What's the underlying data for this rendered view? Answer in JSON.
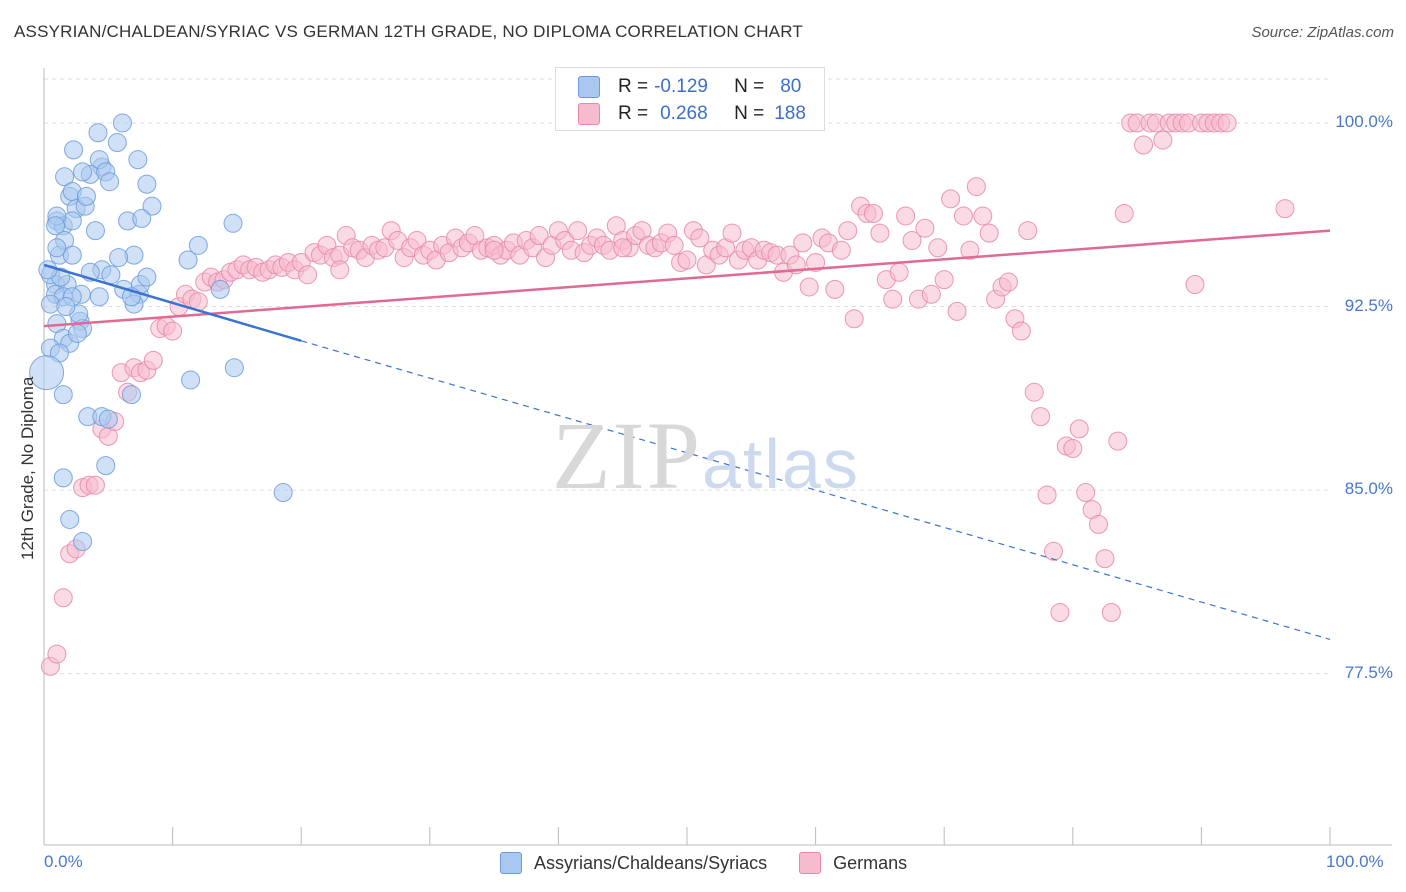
{
  "title": "ASSYRIAN/CHALDEAN/SYRIAC VS GERMAN 12TH GRADE, NO DIPLOMA CORRELATION CHART",
  "source": "Source: ZipAtlas.com",
  "watermark": {
    "zip": "ZIP",
    "atlas": "atlas"
  },
  "colors": {
    "blue_fill": "#a9c8f0",
    "blue_stroke": "#6b9bd8",
    "blue_line": "#3a74d0",
    "pink_fill": "#f6bccd",
    "pink_stroke": "#e887a6",
    "pink_line": "#e06996",
    "tick_text": "#4a78c8",
    "grid": "#dddddd"
  },
  "legend_top": {
    "rows": [
      {
        "r_label": "R =",
        "r_value": "-0.129",
        "n_label": "N =",
        "n_value": "80",
        "color": "#a9c8f0"
      },
      {
        "r_label": "R =",
        "r_value": "0.268",
        "n_label": "N =",
        "n_value": "188",
        "color": "#f6bccd"
      }
    ]
  },
  "legend_bottom": [
    {
      "label": "Assyrians/Chaldeans/Syriacs",
      "color": "#a9c8f0"
    },
    {
      "label": "Germans",
      "color": "#f6bccd"
    }
  ],
  "chart_data": {
    "type": "scatter",
    "title": "ASSYRIAN/CHALDEAN/SYRIAC VS GERMAN 12TH GRADE, NO DIPLOMA CORRELATION CHART",
    "xlabel": "",
    "ylabel": "12th Grade, No Diploma",
    "xlim": [
      0,
      100
    ],
    "ylim": [
      70.5,
      102
    ],
    "x_ticks": [
      "0.0%",
      "100.0%"
    ],
    "y_ticks": [
      {
        "value": 100.0,
        "label": "100.0%"
      },
      {
        "value": 92.5,
        "label": "92.5%"
      },
      {
        "value": 85.0,
        "label": "85.0%"
      },
      {
        "value": 77.5,
        "label": "77.5%"
      }
    ],
    "grid": true,
    "legend": "bottom",
    "series": [
      {
        "name": "Assyrians/Chaldeans/Syriacs",
        "color": "#a9c8f0",
        "trend": {
          "x": [
            0,
            20
          ],
          "y": [
            94.2,
            91.1
          ],
          "dashed_to": [
            100,
            78.9
          ]
        },
        "points": [
          [
            2.0,
            97.0
          ],
          [
            4.5,
            98.2
          ],
          [
            4.2,
            99.6
          ],
          [
            5.7,
            99.2
          ],
          [
            7.3,
            98.5
          ],
          [
            4.3,
            98.5
          ],
          [
            3.6,
            97.9
          ],
          [
            4.8,
            98.0
          ],
          [
            1.6,
            97.8
          ],
          [
            3.0,
            98.0
          ],
          [
            2.2,
            97.2
          ],
          [
            6.1,
            100.0
          ],
          [
            2.5,
            96.5
          ],
          [
            1.0,
            96.0
          ],
          [
            1.5,
            95.8
          ],
          [
            2.2,
            96.0
          ],
          [
            3.2,
            96.6
          ],
          [
            6.5,
            96.0
          ],
          [
            8.0,
            97.5
          ],
          [
            8.4,
            96.6
          ],
          [
            1.0,
            96.2
          ],
          [
            0.9,
            95.8
          ],
          [
            1.2,
            94.6
          ],
          [
            1.6,
            95.2
          ],
          [
            4.0,
            95.6
          ],
          [
            2.2,
            94.6
          ],
          [
            7.0,
            94.6
          ],
          [
            5.8,
            94.5
          ],
          [
            11.2,
            94.4
          ],
          [
            12.0,
            95.0
          ],
          [
            14.7,
            95.9
          ],
          [
            0.9,
            93.4
          ],
          [
            0.5,
            93.8
          ],
          [
            1.8,
            93.4
          ],
          [
            2.9,
            93.0
          ],
          [
            4.5,
            94.0
          ],
          [
            6.2,
            93.2
          ],
          [
            7.4,
            93.0
          ],
          [
            7.0,
            92.6
          ],
          [
            5.2,
            93.8
          ],
          [
            7.5,
            93.4
          ],
          [
            13.7,
            93.2
          ],
          [
            0.9,
            93.0
          ],
          [
            1.5,
            92.9
          ],
          [
            2.2,
            92.9
          ],
          [
            0.5,
            92.6
          ],
          [
            1.0,
            91.8
          ],
          [
            2.8,
            91.9
          ],
          [
            3.0,
            91.6
          ],
          [
            1.5,
            91.2
          ],
          [
            2.0,
            91.0
          ],
          [
            0.5,
            90.8
          ],
          [
            1.2,
            90.6
          ],
          [
            0.2,
            89.8
          ],
          [
            1.5,
            88.9
          ],
          [
            6.8,
            88.9
          ],
          [
            11.4,
            89.5
          ],
          [
            14.8,
            90.0
          ],
          [
            3.4,
            88.0
          ],
          [
            4.5,
            88.0
          ],
          [
            5.0,
            87.9
          ],
          [
            4.8,
            86.0
          ],
          [
            1.5,
            85.5
          ],
          [
            18.6,
            84.9
          ],
          [
            2.0,
            83.8
          ],
          [
            3.0,
            82.9
          ],
          [
            1.3,
            93.7
          ],
          [
            3.6,
            93.9
          ],
          [
            6.8,
            92.9
          ],
          [
            2.7,
            92.2
          ],
          [
            1.7,
            92.5
          ],
          [
            4.3,
            92.9
          ],
          [
            7.6,
            96.1
          ],
          [
            5.1,
            97.6
          ],
          [
            2.3,
            98.9
          ],
          [
            3.3,
            97.0
          ],
          [
            0.3,
            94.0
          ],
          [
            1.0,
            94.9
          ],
          [
            2.6,
            91.4
          ],
          [
            8.0,
            93.7
          ]
        ]
      },
      {
        "name": "Germans",
        "color": "#f6bccd",
        "trend": {
          "x": [
            0,
            100
          ],
          "y": [
            91.7,
            95.6
          ]
        },
        "points": [
          [
            0.5,
            77.8
          ],
          [
            1.0,
            78.3
          ],
          [
            1.5,
            80.6
          ],
          [
            2.0,
            82.4
          ],
          [
            2.5,
            82.6
          ],
          [
            3.0,
            85.1
          ],
          [
            3.5,
            85.2
          ],
          [
            4.0,
            85.2
          ],
          [
            4.5,
            87.5
          ],
          [
            5.0,
            87.2
          ],
          [
            5.5,
            87.8
          ],
          [
            6.0,
            89.8
          ],
          [
            6.5,
            89.0
          ],
          [
            7.0,
            90.0
          ],
          [
            7.5,
            89.8
          ],
          [
            8.0,
            89.9
          ],
          [
            8.5,
            90.3
          ],
          [
            9.0,
            91.6
          ],
          [
            9.5,
            91.7
          ],
          [
            10.0,
            91.5
          ],
          [
            10.5,
            92.5
          ],
          [
            11.0,
            93.0
          ],
          [
            11.5,
            92.8
          ],
          [
            12.0,
            92.7
          ],
          [
            12.5,
            93.5
          ],
          [
            13.0,
            93.7
          ],
          [
            13.5,
            93.5
          ],
          [
            14.0,
            93.6
          ],
          [
            14.5,
            93.9
          ],
          [
            15.0,
            94.0
          ],
          [
            15.5,
            94.2
          ],
          [
            16.0,
            94.0
          ],
          [
            16.5,
            94.1
          ],
          [
            17.0,
            93.9
          ],
          [
            17.5,
            94.0
          ],
          [
            18.0,
            94.2
          ],
          [
            18.5,
            94.1
          ],
          [
            19.0,
            94.3
          ],
          [
            19.5,
            94.0
          ],
          [
            20.0,
            94.3
          ],
          [
            20.5,
            93.8
          ],
          [
            21.0,
            94.7
          ],
          [
            21.5,
            94.6
          ],
          [
            22.0,
            95.0
          ],
          [
            22.5,
            94.5
          ],
          [
            23.0,
            94.6
          ],
          [
            23.5,
            95.4
          ],
          [
            24.0,
            94.9
          ],
          [
            24.5,
            94.8
          ],
          [
            25.0,
            94.5
          ],
          [
            25.5,
            95.0
          ],
          [
            26.0,
            94.8
          ],
          [
            26.5,
            94.9
          ],
          [
            27.0,
            95.6
          ],
          [
            27.5,
            95.2
          ],
          [
            28.0,
            94.5
          ],
          [
            28.5,
            94.9
          ],
          [
            29.0,
            95.2
          ],
          [
            29.5,
            94.6
          ],
          [
            30.0,
            94.8
          ],
          [
            30.5,
            94.4
          ],
          [
            31.0,
            95.0
          ],
          [
            31.5,
            94.7
          ],
          [
            32.0,
            95.3
          ],
          [
            32.5,
            94.9
          ],
          [
            33.0,
            95.1
          ],
          [
            33.5,
            95.4
          ],
          [
            34.0,
            94.8
          ],
          [
            34.5,
            94.9
          ],
          [
            35.0,
            95.0
          ],
          [
            35.5,
            94.6
          ],
          [
            36.0,
            94.8
          ],
          [
            36.5,
            95.1
          ],
          [
            37.0,
            94.6
          ],
          [
            37.5,
            95.2
          ],
          [
            38.0,
            94.9
          ],
          [
            38.5,
            95.4
          ],
          [
            39.0,
            94.5
          ],
          [
            39.5,
            95.0
          ],
          [
            40.0,
            95.6
          ],
          [
            40.5,
            95.2
          ],
          [
            41.0,
            94.8
          ],
          [
            41.5,
            95.6
          ],
          [
            42.0,
            94.7
          ],
          [
            42.5,
            95.0
          ],
          [
            43.0,
            95.3
          ],
          [
            43.5,
            95.0
          ],
          [
            44.0,
            94.8
          ],
          [
            44.5,
            95.8
          ],
          [
            45.0,
            95.2
          ],
          [
            45.5,
            94.9
          ],
          [
            46.0,
            95.4
          ],
          [
            46.5,
            95.6
          ],
          [
            47.0,
            95.0
          ],
          [
            47.5,
            94.9
          ],
          [
            48.0,
            95.1
          ],
          [
            48.5,
            95.5
          ],
          [
            49.0,
            95.0
          ],
          [
            49.5,
            94.3
          ],
          [
            50.0,
            94.4
          ],
          [
            50.5,
            95.6
          ],
          [
            51.0,
            95.3
          ],
          [
            51.5,
            94.2
          ],
          [
            52.0,
            94.8
          ],
          [
            52.5,
            94.6
          ],
          [
            53.0,
            94.9
          ],
          [
            53.5,
            95.5
          ],
          [
            54.0,
            94.4
          ],
          [
            54.5,
            94.8
          ],
          [
            55.0,
            94.9
          ],
          [
            55.5,
            94.4
          ],
          [
            56.0,
            94.8
          ],
          [
            56.5,
            94.7
          ],
          [
            57.0,
            94.6
          ],
          [
            57.5,
            93.9
          ],
          [
            58.0,
            94.6
          ],
          [
            58.5,
            94.2
          ],
          [
            59.0,
            95.1
          ],
          [
            59.5,
            93.3
          ],
          [
            60.0,
            94.3
          ],
          [
            60.5,
            95.3
          ],
          [
            61.0,
            95.1
          ],
          [
            61.5,
            93.2
          ],
          [
            62.0,
            94.8
          ],
          [
            62.5,
            95.6
          ],
          [
            63.0,
            92.0
          ],
          [
            63.5,
            96.6
          ],
          [
            64.0,
            96.3
          ],
          [
            64.5,
            96.3
          ],
          [
            65.0,
            95.5
          ],
          [
            65.5,
            93.6
          ],
          [
            66.0,
            92.8
          ],
          [
            66.5,
            93.9
          ],
          [
            67.0,
            96.2
          ],
          [
            67.5,
            95.2
          ],
          [
            68.0,
            92.8
          ],
          [
            68.5,
            95.7
          ],
          [
            69.0,
            93.0
          ],
          [
            69.5,
            94.9
          ],
          [
            70.0,
            93.6
          ],
          [
            70.5,
            96.9
          ],
          [
            71.0,
            92.3
          ],
          [
            71.5,
            96.2
          ],
          [
            72.0,
            94.8
          ],
          [
            72.5,
            97.4
          ],
          [
            73.0,
            96.2
          ],
          [
            73.5,
            95.5
          ],
          [
            74.0,
            92.8
          ],
          [
            74.5,
            93.3
          ],
          [
            75.0,
            93.5
          ],
          [
            75.5,
            92.0
          ],
          [
            76.0,
            91.5
          ],
          [
            76.5,
            95.6
          ],
          [
            77.0,
            89.0
          ],
          [
            77.5,
            88.0
          ],
          [
            78.0,
            84.8
          ],
          [
            78.5,
            82.5
          ],
          [
            79.0,
            80.0
          ],
          [
            79.5,
            86.8
          ],
          [
            80.0,
            86.7
          ],
          [
            80.5,
            87.5
          ],
          [
            81.0,
            84.9
          ],
          [
            81.5,
            84.2
          ],
          [
            82.0,
            83.6
          ],
          [
            82.5,
            82.2
          ],
          [
            83.0,
            80.0
          ],
          [
            83.5,
            87.0
          ],
          [
            84.0,
            96.3
          ],
          [
            84.5,
            100.0
          ],
          [
            85.0,
            100.0
          ],
          [
            85.5,
            99.1
          ],
          [
            86.0,
            100.0
          ],
          [
            86.5,
            100.0
          ],
          [
            87.0,
            99.3
          ],
          [
            87.5,
            100.0
          ],
          [
            88.0,
            100.0
          ],
          [
            88.5,
            100.0
          ],
          [
            89.0,
            100.0
          ],
          [
            89.5,
            93.4
          ],
          [
            90.0,
            100.0
          ],
          [
            90.5,
            100.0
          ],
          [
            91.0,
            100.0
          ],
          [
            91.5,
            100.0
          ],
          [
            92.0,
            100.0
          ],
          [
            96.5,
            96.5
          ],
          [
            23.0,
            94.0
          ],
          [
            35.0,
            94.8
          ],
          [
            45.0,
            94.9
          ]
        ]
      }
    ]
  }
}
